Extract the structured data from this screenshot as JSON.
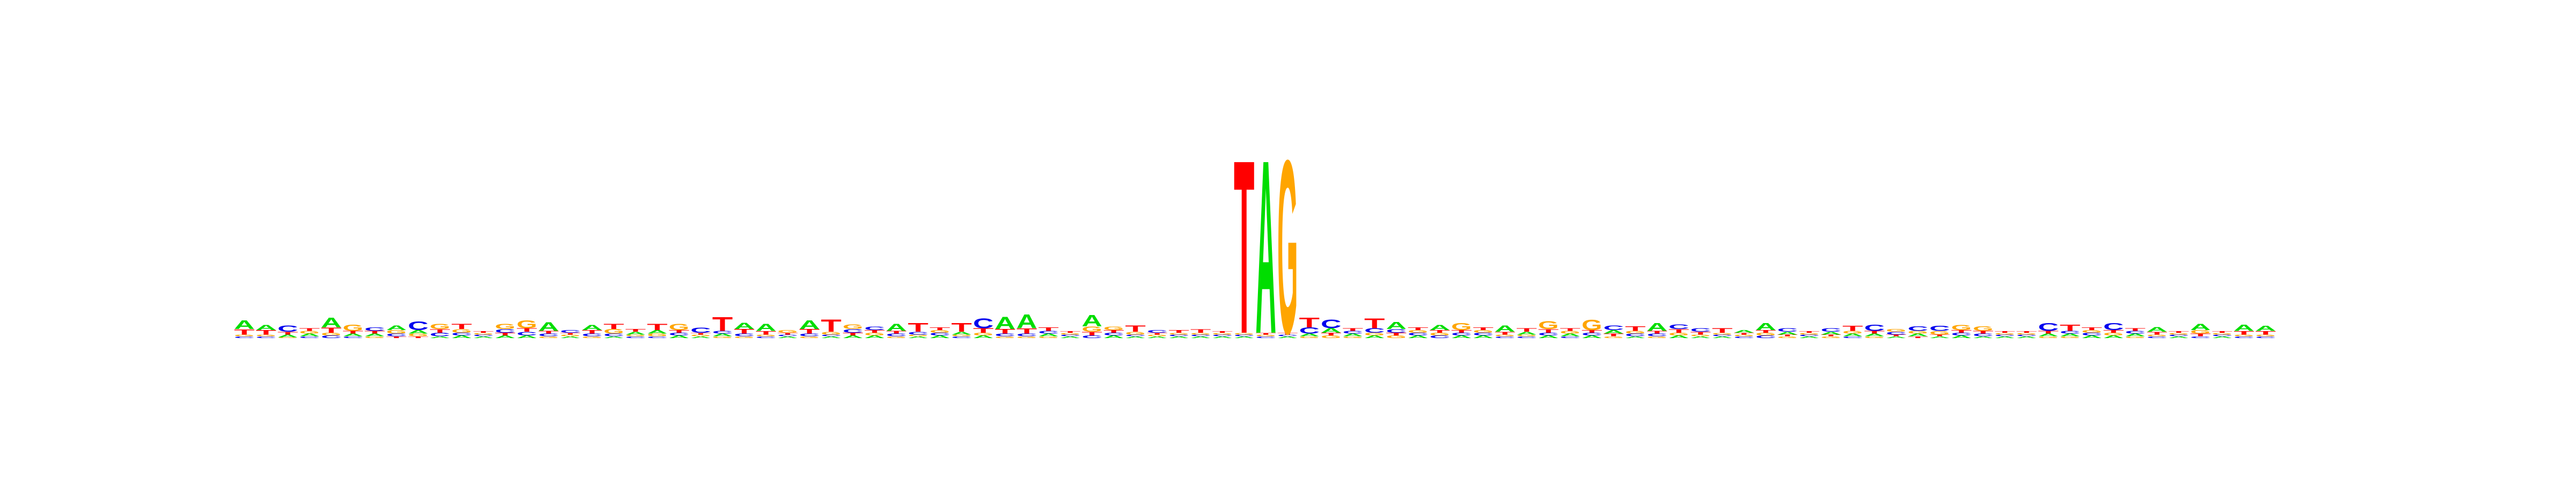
{
  "chart_data": {
    "type": "sequence-logo",
    "alphabet": [
      "A",
      "C",
      "G",
      "T"
    ],
    "colors": {
      "A": "#00dd00",
      "C": "#0000ee",
      "G": "#ffa500",
      "T": "#ff0000"
    },
    "ylim": [
      0,
      2
    ],
    "xlabel": "",
    "ylabel": "",
    "grid": false,
    "positions": [
      {
        "A": 0.1,
        "C": 0.02,
        "G": 0.02,
        "T": 0.06
      },
      {
        "A": 0.06,
        "C": 0.02,
        "G": 0.02,
        "T": 0.05
      },
      {
        "A": 0.03,
        "C": 0.07,
        "G": 0.01,
        "T": 0.03
      },
      {
        "A": 0.03,
        "C": 0.02,
        "G": 0.03,
        "T": 0.03
      },
      {
        "A": 0.11,
        "C": 0.03,
        "G": 0.03,
        "T": 0.06
      },
      {
        "A": 0.03,
        "C": 0.02,
        "G": 0.07,
        "T": 0.03
      },
      {
        "A": 0.03,
        "C": 0.04,
        "G": 0.02,
        "T": 0.03
      },
      {
        "A": 0.05,
        "C": 0.03,
        "G": 0.04,
        "T": 0.02
      },
      {
        "A": 0.04,
        "C": 0.1,
        "G": 0.03,
        "T": 0.02
      },
      {
        "A": 0.02,
        "C": 0.04,
        "G": 0.06,
        "T": 0.04
      },
      {
        "A": 0.03,
        "C": 0.03,
        "G": 0.04,
        "T": 0.06
      },
      {
        "A": 0.02,
        "C": 0.02,
        "G": 0.02,
        "T": 0.02
      },
      {
        "A": 0.03,
        "C": 0.04,
        "G": 0.06,
        "T": 0.03
      },
      {
        "A": 0.03,
        "C": 0.04,
        "G": 0.09,
        "T": 0.04
      },
      {
        "A": 0.1,
        "C": 0.03,
        "G": 0.02,
        "T": 0.03
      },
      {
        "A": 0.02,
        "C": 0.03,
        "G": 0.02,
        "T": 0.02
      },
      {
        "A": 0.06,
        "C": 0.03,
        "G": 0.02,
        "T": 0.04
      },
      {
        "A": 0.02,
        "C": 0.03,
        "G": 0.05,
        "T": 0.06
      },
      {
        "A": 0.03,
        "C": 0.02,
        "G": 0.02,
        "T": 0.03
      },
      {
        "A": 0.04,
        "C": 0.02,
        "G": 0.03,
        "T": 0.07
      },
      {
        "A": 0.03,
        "C": 0.03,
        "G": 0.07,
        "T": 0.03
      },
      {
        "A": 0.02,
        "C": 0.06,
        "G": 0.02,
        "T": 0.02
      },
      {
        "A": 0.03,
        "C": 0.03,
        "G": 0.02,
        "T": 0.16
      },
      {
        "A": 0.07,
        "C": 0.03,
        "G": 0.02,
        "T": 0.05
      },
      {
        "A": 0.08,
        "C": 0.02,
        "G": 0.02,
        "T": 0.04
      },
      {
        "A": 0.02,
        "C": 0.02,
        "G": 0.03,
        "T": 0.02
      },
      {
        "A": 0.1,
        "C": 0.03,
        "G": 0.02,
        "T": 0.05
      },
      {
        "A": 0.02,
        "C": 0.02,
        "G": 0.03,
        "T": 0.14
      },
      {
        "A": 0.03,
        "C": 0.04,
        "G": 0.05,
        "T": 0.03
      },
      {
        "A": 0.03,
        "C": 0.04,
        "G": 0.03,
        "T": 0.03
      },
      {
        "A": 0.08,
        "C": 0.03,
        "G": 0.02,
        "T": 0.03
      },
      {
        "A": 0.02,
        "C": 0.03,
        "G": 0.02,
        "T": 0.1
      },
      {
        "A": 0.03,
        "C": 0.03,
        "G": 0.03,
        "T": 0.03
      },
      {
        "A": 0.03,
        "C": 0.02,
        "G": 0.02,
        "T": 0.1
      },
      {
        "A": 0.03,
        "C": 0.11,
        "G": 0.03,
        "T": 0.05
      },
      {
        "A": 0.14,
        "C": 0.03,
        "G": 0.02,
        "T": 0.05
      },
      {
        "A": 0.16,
        "C": 0.03,
        "G": 0.02,
        "T": 0.06
      },
      {
        "A": 0.03,
        "C": 0.03,
        "G": 0.02,
        "T": 0.04
      },
      {
        "A": 0.02,
        "C": 0.02,
        "G": 0.02,
        "T": 0.02
      },
      {
        "A": 0.13,
        "C": 0.03,
        "G": 0.06,
        "T": 0.04
      },
      {
        "A": 0.03,
        "C": 0.03,
        "G": 0.04,
        "T": 0.03
      },
      {
        "A": 0.02,
        "C": 0.02,
        "G": 0.03,
        "T": 0.07
      },
      {
        "A": 0.02,
        "C": 0.03,
        "G": 0.02,
        "T": 0.02
      },
      {
        "A": 0.02,
        "C": 0.02,
        "G": 0.02,
        "T": 0.03
      },
      {
        "A": 0.02,
        "C": 0.02,
        "G": 0.02,
        "T": 0.04
      },
      {
        "A": 0.02,
        "C": 0.02,
        "G": 0.02,
        "T": 0.02
      },
      {
        "A": 0.02,
        "C": 0.02,
        "G": 0.02,
        "T": 1.98
      },
      {
        "A": 1.98,
        "C": 0.02,
        "G": 0.02,
        "T": 0.02
      },
      {
        "A": 0.02,
        "C": 0.02,
        "G": 1.98,
        "T": 0.02
      },
      {
        "A": 0.03,
        "C": 0.07,
        "G": 0.02,
        "T": 0.11
      },
      {
        "A": 0.05,
        "C": 0.1,
        "G": 0.03,
        "T": 0.03
      },
      {
        "A": 0.03,
        "C": 0.03,
        "G": 0.02,
        "T": 0.03
      },
      {
        "A": 0.03,
        "C": 0.05,
        "G": 0.03,
        "T": 0.11
      },
      {
        "A": 0.08,
        "C": 0.04,
        "G": 0.03,
        "T": 0.03
      },
      {
        "A": 0.03,
        "C": 0.03,
        "G": 0.03,
        "T": 0.03
      },
      {
        "A": 0.06,
        "C": 0.03,
        "G": 0.03,
        "T": 0.03
      },
      {
        "A": 0.03,
        "C": 0.03,
        "G": 0.08,
        "T": 0.03
      },
      {
        "A": 0.03,
        "C": 0.03,
        "G": 0.03,
        "T": 0.03
      },
      {
        "A": 0.07,
        "C": 0.02,
        "G": 0.02,
        "T": 0.03
      },
      {
        "A": 0.03,
        "C": 0.02,
        "G": 0.02,
        "T": 0.04
      },
      {
        "A": 0.03,
        "C": 0.03,
        "G": 0.09,
        "T": 0.04
      },
      {
        "A": 0.03,
        "C": 0.02,
        "G": 0.03,
        "T": 0.03
      },
      {
        "A": 0.03,
        "C": 0.03,
        "G": 0.12,
        "T": 0.03
      },
      {
        "A": 0.04,
        "C": 0.05,
        "G": 0.02,
        "T": 0.03
      },
      {
        "A": 0.02,
        "C": 0.03,
        "G": 0.03,
        "T": 0.05
      },
      {
        "A": 0.09,
        "C": 0.03,
        "G": 0.02,
        "T": 0.03
      },
      {
        "A": 0.03,
        "C": 0.05,
        "G": 0.03,
        "T": 0.04
      },
      {
        "A": 0.02,
        "C": 0.04,
        "G": 0.02,
        "T": 0.03
      },
      {
        "A": 0.02,
        "C": 0.02,
        "G": 0.02,
        "T": 0.05
      },
      {
        "A": 0.03,
        "C": 0.02,
        "G": 0.02,
        "T": 0.02
      },
      {
        "A": 0.08,
        "C": 0.03,
        "G": 0.03,
        "T": 0.03
      },
      {
        "A": 0.03,
        "C": 0.04,
        "G": 0.02,
        "T": 0.02
      },
      {
        "A": 0.02,
        "C": 0.02,
        "G": 0.02,
        "T": 0.02
      },
      {
        "A": 0.03,
        "C": 0.04,
        "G": 0.02,
        "T": 0.02
      },
      {
        "A": 0.03,
        "C": 0.02,
        "G": 0.03,
        "T": 0.06
      },
      {
        "A": 0.03,
        "C": 0.07,
        "G": 0.02,
        "T": 0.03
      },
      {
        "A": 0.02,
        "C": 0.03,
        "G": 0.03,
        "T": 0.02
      },
      {
        "A": 0.03,
        "C": 0.05,
        "G": 0.03,
        "T": 0.02
      },
      {
        "A": 0.02,
        "C": 0.06,
        "G": 0.04,
        "T": 0.02
      },
      {
        "A": 0.03,
        "C": 0.03,
        "G": 0.06,
        "T": 0.03
      },
      {
        "A": 0.02,
        "C": 0.03,
        "G": 0.05,
        "T": 0.03
      },
      {
        "A": 0.02,
        "C": 0.02,
        "G": 0.02,
        "T": 0.02
      },
      {
        "A": 0.02,
        "C": 0.02,
        "G": 0.02,
        "T": 0.02
      },
      {
        "A": 0.03,
        "C": 0.09,
        "G": 0.02,
        "T": 0.03
      },
      {
        "A": 0.03,
        "C": 0.03,
        "G": 0.02,
        "T": 0.07
      },
      {
        "A": 0.03,
        "C": 0.03,
        "G": 0.03,
        "T": 0.03
      },
      {
        "A": 0.03,
        "C": 0.08,
        "G": 0.03,
        "T": 0.03
      },
      {
        "A": 0.03,
        "C": 0.03,
        "G": 0.02,
        "T": 0.03
      },
      {
        "A": 0.05,
        "C": 0.02,
        "G": 0.02,
        "T": 0.03
      },
      {
        "A": 0.02,
        "C": 0.02,
        "G": 0.02,
        "T": 0.02
      },
      {
        "A": 0.07,
        "C": 0.02,
        "G": 0.04,
        "T": 0.03
      },
      {
        "A": 0.02,
        "C": 0.02,
        "G": 0.02,
        "T": 0.02
      },
      {
        "A": 0.07,
        "C": 0.02,
        "G": 0.02,
        "T": 0.04
      },
      {
        "A": 0.06,
        "C": 0.02,
        "G": 0.02,
        "T": 0.04
      }
    ]
  }
}
